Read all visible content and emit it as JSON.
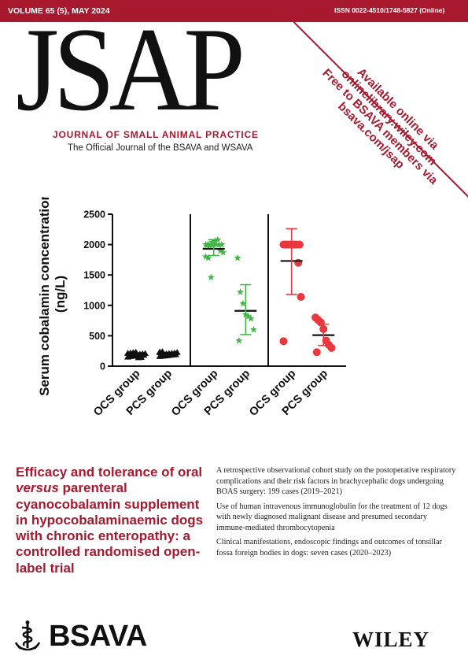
{
  "header": {
    "volume": "VOLUME 65 (5), MAY 2024",
    "issn": "ISSN 0022-4510/1748-5827 (Online)"
  },
  "journal": {
    "title": "JSAP",
    "subtitle": "JOURNAL OF SMALL ANIMAL PRACTICE",
    "tagline": "The Official Journal of the BSAVA and WSAVA"
  },
  "banner": {
    "lines": [
      "Available online via",
      "onlinelibrary.wiley.com",
      "Free to BSAVA members via",
      "bsava.com/jsap"
    ]
  },
  "chart_data": {
    "type": "scatter",
    "title": "",
    "ylabel": "Serum cobalamin concentration (ng/L)",
    "ylabel_lines": [
      "Serum cobalamin concentration",
      "(ng/L)"
    ],
    "ylim": [
      0,
      2500
    ],
    "yticks": [
      "0",
      "500",
      "1000",
      "1500",
      "2000",
      "2500"
    ],
    "categories": [
      "OCS group",
      "PCS group",
      "OCS group",
      "PCS group",
      "OCS group",
      "PCS group"
    ],
    "panels": [
      {
        "color": "#111111",
        "marker": "triangle",
        "groups": [
          {
            "name": "OCS group",
            "median": 185,
            "iqr": [
              155,
              215
            ],
            "points": [
              150,
              160,
              165,
              170,
              175,
              178,
              180,
              183,
              186,
              190,
              195,
              200,
              205,
              210,
              215,
              220,
              225,
              232,
              140,
              145
            ]
          },
          {
            "name": "PCS group",
            "median": 195,
            "iqr": [
              165,
              225
            ],
            "points": [
              160,
              165,
              170,
              175,
              180,
              185,
              190,
              195,
              200,
              205,
              210,
              215,
              220,
              228,
              235,
              240
            ]
          }
        ]
      },
      {
        "color": "#44b649",
        "marker": "star",
        "groups": [
          {
            "name": "OCS group",
            "median": 1930,
            "iqr": [
              1820,
              2080
            ],
            "points": [
              2000,
              2000,
              2000,
              2000,
              2000,
              2000,
              2000,
              1990,
              1980,
              2040,
              2060,
              2080,
              1900,
              1870,
              1800,
              1780,
              1460
            ]
          },
          {
            "name": "PCS group",
            "median": 910,
            "iqr": [
              520,
              1340
            ],
            "points": [
              1780,
              1220,
              1030,
              850,
              820,
              780,
              600,
              420
            ]
          }
        ]
      },
      {
        "color": "#e8383d",
        "marker": "circle",
        "groups": [
          {
            "name": "OCS group",
            "median": 1730,
            "iqr": [
              1180,
              2260
            ],
            "points": [
              2000,
              2000,
              2000,
              2000,
              2000,
              2000,
              2000,
              2000,
              2000,
              2000,
              2000,
              2000,
              1700,
              1140,
              410
            ]
          },
          {
            "name": "PCS group",
            "median": 510,
            "iqr": [
              340,
              690
            ],
            "points": [
              800,
              760,
              720,
              610,
              420,
              350,
              300,
              230
            ]
          }
        ]
      }
    ]
  },
  "headline": {
    "pre": "Efficacy and tolerance of oral ",
    "italic": "versus",
    "post": " parenteral cyanocobalamin supplement in hypocobalaminaemic dogs with chronic enteropathy: a controlled randomised open-label trial"
  },
  "toc": [
    "A retrospective observational cohort study on the postoperative respiratory complications and their risk factors in brachycephalic dogs undergoing BOAS surgery: 199 cases (2019–2021)",
    "Use of human intravenous immunoglobulin for the treatment of 12 dogs with newly diagnosed malignant disease and presumed secondary immune-mediated thrombocytopenia",
    "Clinical manifestations, endoscopic findings and outcomes of tonsillar fossa foreign bodies in dogs: seven cases (2020–2023)"
  ],
  "footer": {
    "bsava": "BSAVA",
    "wiley": "WILEY",
    "bsava_logo_icon": "rod-of-asclepius-icon"
  }
}
